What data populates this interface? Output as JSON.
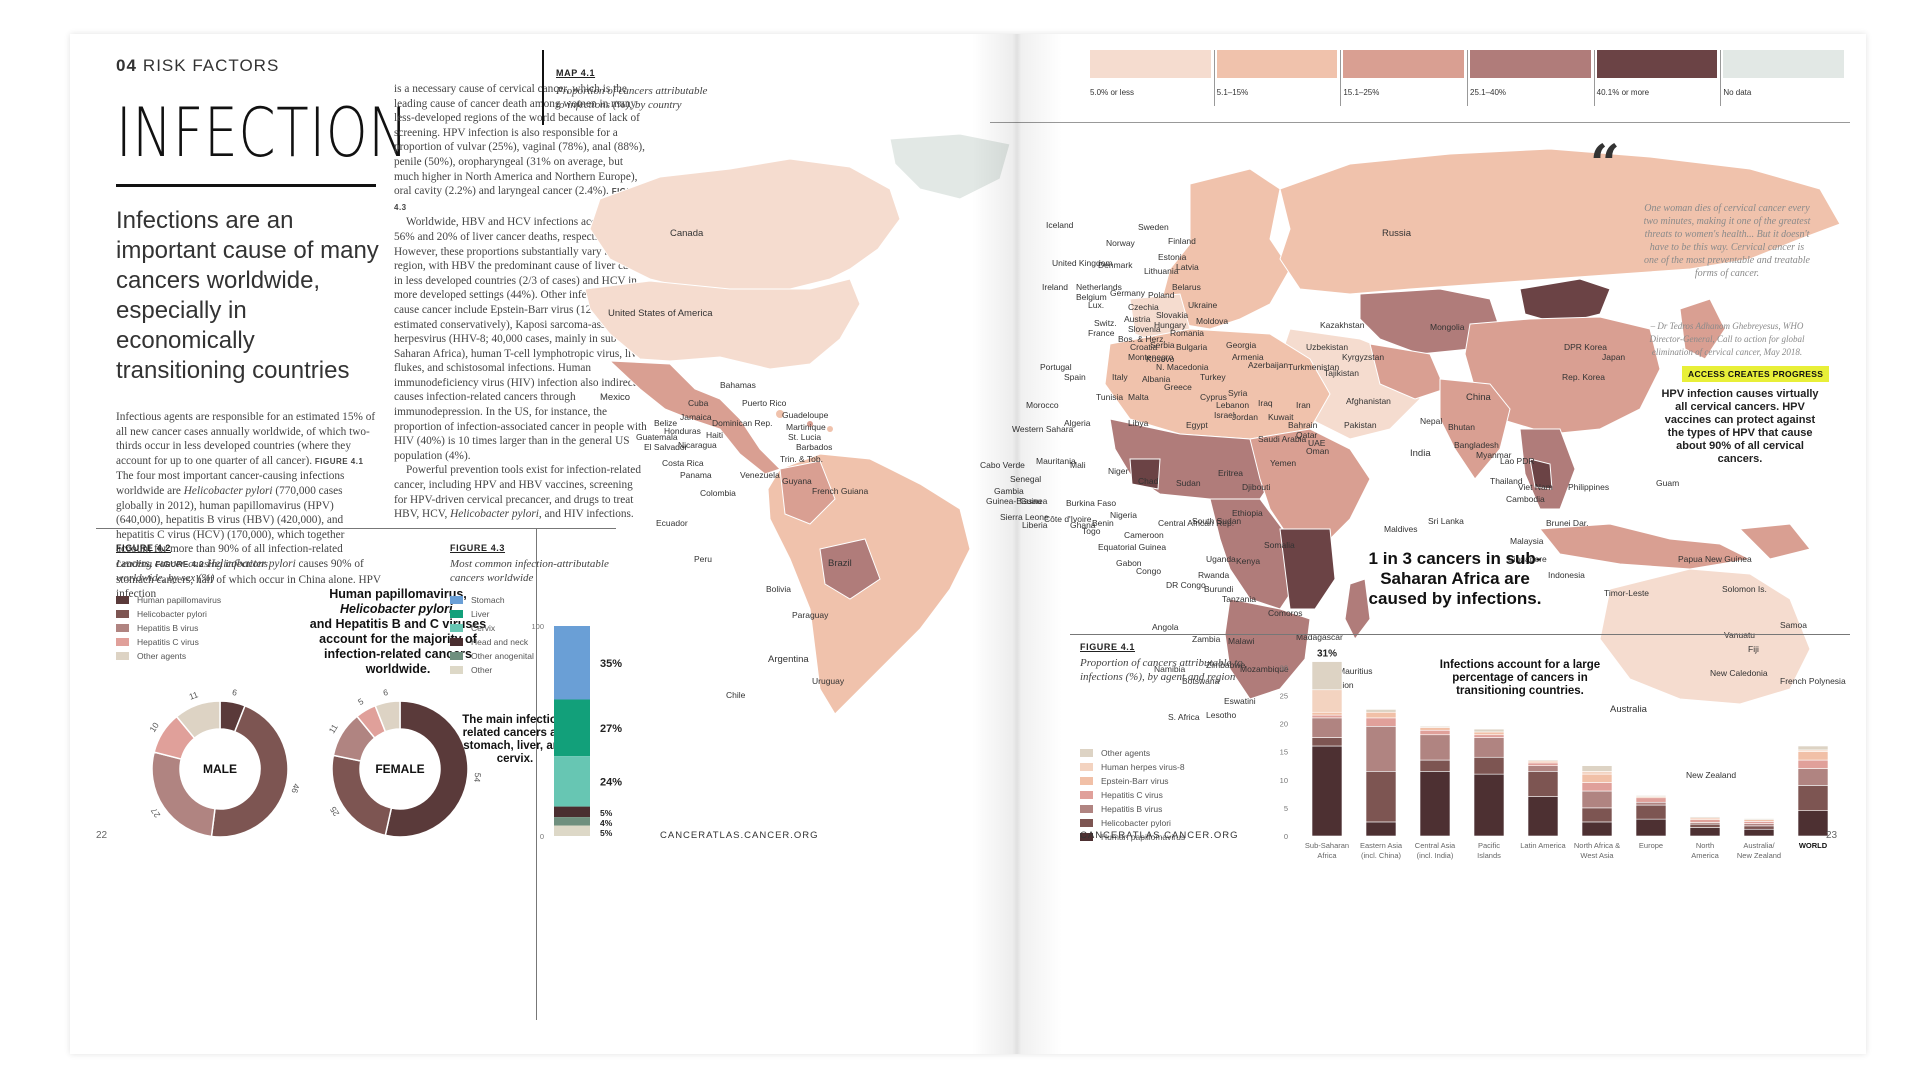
{
  "left_page": {
    "section_number": "04",
    "section_name": "RISK FACTORS",
    "title": "INFECTION",
    "subtitle": "Infections are an important cause of many cancers worldwide, especially in economically transitioning countries",
    "intro_p1": "Infectious agents are responsible for an estimated 15% of all new cancer cases annually worldwide, of which two-thirds occur in less developed countries (where they account for up to one quarter of all cancer).",
    "ref_41": "FIGURE 4.1",
    "intro_p2": "The four most important cancer-causing infections worldwide are",
    "hp_italic": "Helicobacter pylori",
    "intro_p3": "(770,000 cases globally in 2012), human papillomavirus (HPV) (640,000), hepatitis B virus (HBV) (420,000), and hepatitis C virus (HCV) (170,000), which together account for more than 90% of all infection-related cancers.",
    "ref_42": "FIGURE 4.2",
    "hp_italic2": "Helicobacter pylori",
    "intro_p4": "causes 90% of stomach cancers, half of which occur in China alone. HPV infection",
    "col2_p1": "is a necessary cause of cervical cancer, which is the leading cause of cancer death among women in many less-developed regions of the world because of lack of screening. HPV infection is also responsible for a proportion of vulvar (25%), vaginal (78%), anal (88%), penile (50%), oropharyngeal (31% on average, but much higher in North America and Northern Europe), oral cavity (2.2%) and laryngeal cancer (2.4%).",
    "ref_43": "FIGURE 4.3",
    "col2_p2": "Worldwide, HBV and HCV infections account for 56% and 20% of liver cancer deaths, respectively. However, these proportions substantially vary by region, with HBV the predominant cause of liver cancer in less developed countries (2/3 of cases) and HCV in more developed settings (44%). Other infections that cause cancer include Epstein-Barr virus (120,000 cases, estimated conservatively), Kaposi sarcoma-associated herpesvirus (HHV-8; 40,000 cases, mainly in sub-Saharan Africa), human T-cell lymphotropic virus, liver flukes, and schistosomal infections. Human immunodeficiency virus (HIV) infection also indirectly causes infection-related cancers through immunodepression. In the US, for instance, the proportion of infection-associated cancer in people with HIV (40%) is 10 times larger than in the general US population (4%).",
    "col2_p3a": "Powerful prevention tools exist for infection-related cancer, including HPV and HBV vaccines, screening for HPV-driven cervical precancer, and drugs to treat HBV, HCV,",
    "col2_p3_italic": "Helicobacter pylori,",
    "col2_p3b": "and HIV infections.",
    "page_number": "22",
    "footer_url": "CANCERATLAS.CANCER.ORG"
  },
  "fig42": {
    "label": "FIGURE 4.2",
    "caption": "Leading cancer-causing infections worldwide, by sex (%)",
    "legend": [
      {
        "name": "Human papillomavirus",
        "color": "#5a3a3a"
      },
      {
        "name": "Helicobacter pylori",
        "color": "#7d5552"
      },
      {
        "name": "Hepatitis B virus",
        "color": "#b08481"
      },
      {
        "name": "Hepatitis C virus",
        "color": "#e0a09a"
      },
      {
        "name": "Other agents",
        "color": "#ddd3c4"
      }
    ],
    "note_l1": "Human papillomavirus,",
    "note_l2": "Helicobacter pylori,",
    "note_l3": "and Hepatitis B and C viruses account for the majority of infection-related cancers worldwide.",
    "male_label": "MALE",
    "female_label": "FEMALE",
    "male": [
      6,
      46,
      27,
      10,
      11
    ],
    "female": [
      54,
      25,
      11,
      5,
      6
    ]
  },
  "fig43": {
    "label": "FIGURE 4.3",
    "caption": "Most common infection-attributable cancers worldwide",
    "legend": [
      {
        "name": "Stomach",
        "color": "#6a9fd6"
      },
      {
        "name": "Liver",
        "color": "#12a07a"
      },
      {
        "name": "Cervix",
        "color": "#67c6b3"
      },
      {
        "name": "Head and neck",
        "color": "#4a2e30"
      },
      {
        "name": "Other anogenital",
        "color": "#6f8f7e"
      },
      {
        "name": "Other",
        "color": "#ddd8c7"
      }
    ],
    "values": [
      35,
      27,
      24,
      5,
      4,
      5
    ],
    "value_labels": [
      "35%",
      "27%",
      "24%",
      "5%",
      "4%",
      "5%"
    ],
    "axis_top": "100",
    "axis_bottom": "0",
    "note": "The main infection-related cancers are stomach, liver, and cervix."
  },
  "map": {
    "label": "MAP 4.1",
    "caption": "Proportion of cancers attributable to infections (%), by country",
    "scale": [
      {
        "label": "5.0% or less",
        "color": "#f5dccf"
      },
      {
        "label": "5.1–15%",
        "color": "#f0c2ac"
      },
      {
        "label": "15.1–25%",
        "color": "#d99f92"
      },
      {
        "label": "25.1–40%",
        "color": "#b07c7a"
      },
      {
        "label": "40.1% or more",
        "color": "#6b4345"
      },
      {
        "label": "No data",
        "color": "#e2e8e5"
      }
    ],
    "countries": [
      "Canada",
      "United States of America",
      "Mexico",
      "Bahamas",
      "Cuba",
      "Puerto Rico",
      "Jamaica",
      "Dominican Rep.",
      "Haiti",
      "Belize",
      "Honduras",
      "Guatemala",
      "El Salvador",
      "Nicaragua",
      "Costa Rica",
      "Panama",
      "Guadeloupe",
      "Martinique",
      "St. Lucia",
      "Barbados",
      "Trin. & Tob.",
      "Venezuela",
      "Guyana",
      "French Guiana",
      "Colombia",
      "Ecuador",
      "Peru",
      "Brazil",
      "Bolivia",
      "Paraguay",
      "Chile",
      "Argentina",
      "Uruguay",
      "Iceland",
      "Norway",
      "Sweden",
      "Finland",
      "Russia",
      "Estonia",
      "Latvia",
      "Lithuania",
      "Denmark",
      "United Kingdom",
      "Ireland",
      "Netherlands",
      "Belgium",
      "Lux.",
      "Germany",
      "Poland",
      "Belarus",
      "Czechia",
      "Slovakia",
      "Ukraine",
      "Austria",
      "Hungary",
      "Moldova",
      "Switz.",
      "Slovenia",
      "Romania",
      "France",
      "Bos. & Herz.",
      "Croatia",
      "Serbia",
      "Bulgaria",
      "Montenegro",
      "Kosovo",
      "N. Macedonia",
      "Georgia",
      "Armenia",
      "Azerbaijan",
      "Kazakhstan",
      "Uzbekistan",
      "Turkmenistan",
      "Kyrgyzstan",
      "Tajikistan",
      "Mongolia",
      "China",
      "DPR Korea",
      "Rep. Korea",
      "Japan",
      "Portugal",
      "Spain",
      "Italy",
      "Albania",
      "Greece",
      "Turkey",
      "Malta",
      "Cyprus",
      "Syria",
      "Lebanon",
      "Israel",
      "Jordan",
      "Iraq",
      "Iran",
      "Afghanistan",
      "Pakistan",
      "India",
      "Nepal",
      "Bhutan",
      "Bangladesh",
      "Myanmar",
      "Lao PDR",
      "Thailand",
      "Viet Nam",
      "Cambodia",
      "Philippines",
      "Guam",
      "Sri Lanka",
      "Maldives",
      "Malaysia",
      "Brunei Dar.",
      "Singapore",
      "Indonesia",
      "Timor-Leste",
      "Papua New Guinea",
      "Solomon Is.",
      "Vanuatu",
      "Fiji",
      "Samoa",
      "New Caledonia",
      "French Polynesia",
      "Australia",
      "New Zealand",
      "Morocco",
      "Western Sahara",
      "Algeria",
      "Tunisia",
      "Libya",
      "Egypt",
      "Mauritania",
      "Mali",
      "Niger",
      "Chad",
      "Sudan",
      "Eritrea",
      "Djibouti",
      "Yemen",
      "Oman",
      "Saudi Arabia",
      "Kuwait",
      "Bahrain",
      "Qatar",
      "UAE",
      "Cabo Verde",
      "Senegal",
      "Gambia",
      "Guinea-Bissau",
      "Guinea",
      "Sierra Leone",
      "Liberia",
      "Côte d'Ivoire",
      "Burkina Faso",
      "Ghana",
      "Togo",
      "Benin",
      "Nigeria",
      "Cameroon",
      "Central African Rep.",
      "South Sudan",
      "Ethiopia",
      "Somalia",
      "Equatorial Guinea",
      "Gabon",
      "Congo",
      "DR Congo",
      "Uganda",
      "Kenya",
      "Rwanda",
      "Burundi",
      "Tanzania",
      "Angola",
      "Zambia",
      "Malawi",
      "Mozambique",
      "Zimbabwe",
      "Namibia",
      "Botswana",
      "S. Africa",
      "Eswatini",
      "Lesotho",
      "Comoros",
      "Madagascar",
      "Mauritius",
      "Réunion"
    ]
  },
  "quote": {
    "text": "One woman dies of cervical cancer every two minutes, making it one of the greatest threats to women's health... But it doesn't have to be this way. Cervical cancer is one of the most preventable and treatable forms of cancer.",
    "attribution": "– Dr Tedros Adhanom Ghebreyesus, WHO Director-General, Call to action for global elimination of cervical cancer, May 2018."
  },
  "access": {
    "badge": "ACCESS CREATES PROGRESS",
    "note": "HPV infection causes virtually all cervical cancers. HPV vaccines can protect against the types of HPV that cause about 90% of all cervical cancers."
  },
  "africa_callout": "1 in 3 cancers in sub-Saharan Africa are caused by infections.",
  "fig41": {
    "label": "FIGURE 4.1",
    "caption": "Proportion of cancers attributable to infections (%), by agent and region",
    "legend": [
      {
        "name": "Other agents",
        "color": "#ddd3c4"
      },
      {
        "name": "Human herpes virus-8",
        "color": "#f3d3c0"
      },
      {
        "name": "Epstein-Barr virus",
        "color": "#f1c0a7"
      },
      {
        "name": "Hepatitis C virus",
        "color": "#e0a09a"
      },
      {
        "name": "Hepatitis B virus",
        "color": "#b08481"
      },
      {
        "name": "Helicobacter pylori",
        "color": "#7d5552"
      },
      {
        "name": "Human papillomavirus",
        "color": "#4d3032"
      }
    ],
    "note": "Infections account for a large percentage of cancers in transitioning countries.",
    "top_label": "31%",
    "y_ticks": [
      "0",
      "5",
      "10",
      "15",
      "20",
      "25",
      "30"
    ],
    "categories": [
      {
        "name": "Sub-Saharan",
        "name2": "Africa",
        "hpv": 16.0,
        "hp": 1.5,
        "hbv": 3.5,
        "hcv": 0.5,
        "ebv": 0.5,
        "hhv8": 4.0,
        "other": 5.0
      },
      {
        "name": "Eastern Asia",
        "name2": "(incl. China)",
        "hpv": 2.5,
        "hp": 9.0,
        "hbv": 8.0,
        "hcv": 1.5,
        "ebv": 1.0,
        "hhv8": 0.0,
        "other": 0.5
      },
      {
        "name": "Central Asia",
        "name2": "(incl. India)",
        "hpv": 11.5,
        "hp": 2.0,
        "hbv": 4.5,
        "hcv": 0.8,
        "ebv": 0.5,
        "hhv8": 0.0,
        "other": 0.2
      },
      {
        "name": "Pacific",
        "name2": "Islands",
        "hpv": 11.0,
        "hp": 3.0,
        "hbv": 3.5,
        "hcv": 0.5,
        "ebv": 0.5,
        "hhv8": 0.0,
        "other": 0.5
      },
      {
        "name": "Latin America",
        "name2": "",
        "hpv": 7.0,
        "hp": 4.5,
        "hbv": 1.0,
        "hcv": 0.5,
        "ebv": 0.3,
        "hhv8": 0.0,
        "other": 0.2
      },
      {
        "name": "North Africa &",
        "name2": "West Asia",
        "hpv": 2.5,
        "hp": 2.5,
        "hbv": 3.0,
        "hcv": 1.5,
        "ebv": 1.5,
        "hhv8": 0.5,
        "other": 1.0
      },
      {
        "name": "Europe",
        "name2": "",
        "hpv": 3.0,
        "hp": 2.5,
        "hbv": 0.5,
        "hcv": 0.8,
        "ebv": 0.2,
        "hhv8": 0.0,
        "other": 0.2
      },
      {
        "name": "North",
        "name2": "America",
        "hpv": 1.5,
        "hp": 0.6,
        "hbv": 0.3,
        "hcv": 0.5,
        "ebv": 0.3,
        "hhv8": 0.0,
        "other": 0.2
      },
      {
        "name": "Australia/",
        "name2": "New Zealand",
        "hpv": 1.2,
        "hp": 0.6,
        "hbv": 0.4,
        "hcv": 0.4,
        "ebv": 0.3,
        "hhv8": 0.0,
        "other": 0.2
      },
      {
        "name": "WORLD",
        "name2": "",
        "hpv": 4.5,
        "hp": 4.5,
        "hbv": 3.0,
        "hcv": 1.5,
        "ebv": 1.5,
        "hhv8": 0.3,
        "other": 0.7
      }
    ]
  },
  "right_page": {
    "footer_url": "CANCERATLAS.CANCER.ORG",
    "page_number": "23"
  }
}
